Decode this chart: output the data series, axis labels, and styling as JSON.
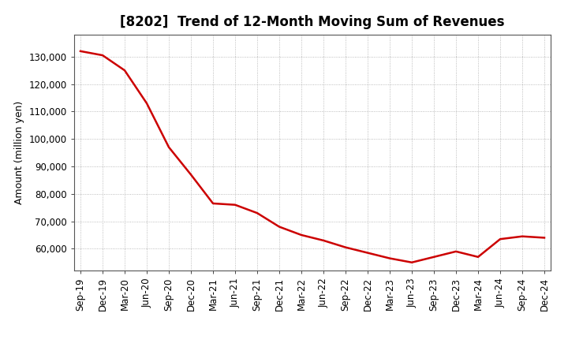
{
  "title": "[8202]  Trend of 12-Month Moving Sum of Revenues",
  "ylabel": "Amount (million yen)",
  "background_color": "#ffffff",
  "line_color": "#cc0000",
  "grid_color": "#aaaaaa",
  "x_labels": [
    "Sep-19",
    "Dec-19",
    "Mar-20",
    "Jun-20",
    "Sep-20",
    "Dec-20",
    "Mar-21",
    "Jun-21",
    "Sep-21",
    "Dec-21",
    "Mar-22",
    "Jun-22",
    "Sep-22",
    "Dec-22",
    "Mar-23",
    "Jun-23",
    "Sep-23",
    "Dec-23",
    "Mar-24",
    "Jun-24",
    "Sep-24",
    "Dec-24"
  ],
  "values": [
    132000,
    130500,
    125000,
    113000,
    97000,
    87000,
    76500,
    76000,
    73000,
    68000,
    65000,
    63000,
    60500,
    58500,
    56500,
    55000,
    57000,
    59000,
    57000,
    63500,
    64500,
    64000
  ],
  "ylim_min": 52000,
  "ylim_max": 138000,
  "yticks": [
    60000,
    70000,
    80000,
    90000,
    100000,
    110000,
    120000,
    130000
  ],
  "title_fontsize": 12,
  "label_fontsize": 9,
  "tick_fontsize": 8.5
}
